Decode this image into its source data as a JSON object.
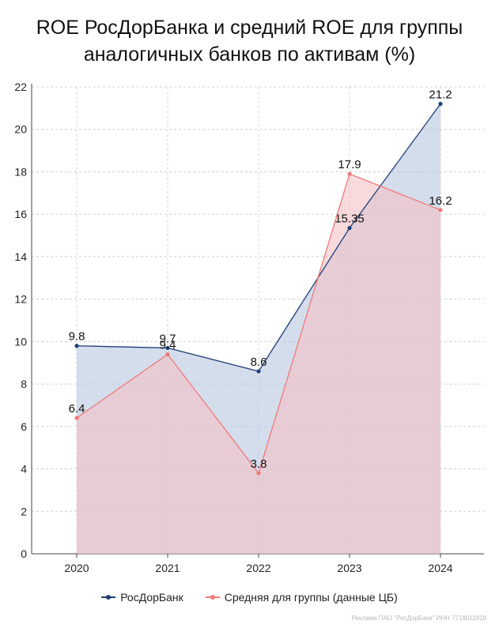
{
  "title_line1": "ROE РосДорБанка и средний ROE для группы",
  "title_line2": "аналогичных банков по активам (%)",
  "footer_text": "Реклама ПАО \"РосДорБанк\" ИНН 7718011918",
  "chart_data": {
    "type": "area",
    "categories": [
      "2020",
      "2021",
      "2022",
      "2023",
      "2024"
    ],
    "ylim": [
      0,
      22
    ],
    "yticks": [
      0,
      2,
      4,
      6,
      8,
      10,
      12,
      14,
      16,
      18,
      20,
      22
    ],
    "grid": true,
    "legend_position": "bottom",
    "series": [
      {
        "name": "РосДорБанк",
        "values": [
          9.8,
          9.7,
          8.6,
          15.35,
          21.2
        ],
        "labels": [
          "9.8",
          "9.7",
          "8.6",
          "15.35",
          "21.2"
        ],
        "line_color": "#1f3f7a",
        "fill_color": "#b7c6de"
      },
      {
        "name": "Средняя для группы (данные ЦБ)",
        "values": [
          6.4,
          9.4,
          3.8,
          17.9,
          16.2
        ],
        "labels": [
          "6.4",
          "9.4",
          "3.8",
          "17.9",
          "16.2"
        ],
        "line_color": "#f07a7a",
        "fill_color": "#f4c2c6"
      }
    ]
  }
}
